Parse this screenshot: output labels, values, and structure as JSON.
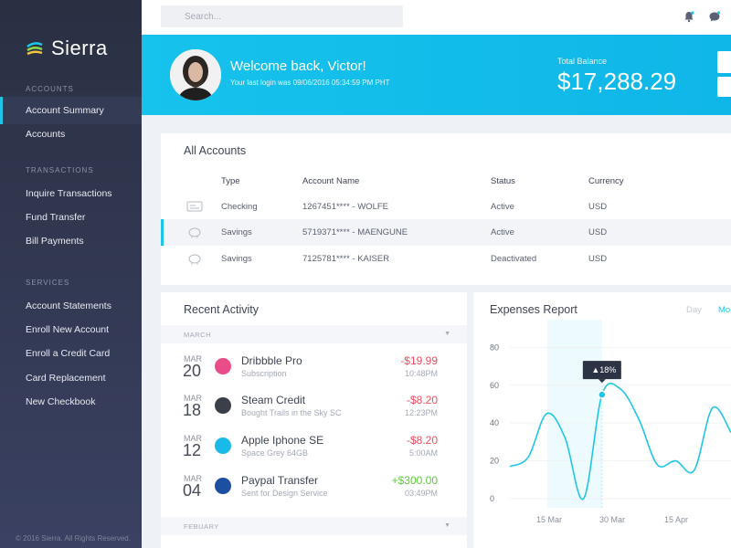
{
  "app": {
    "name": "Sierra"
  },
  "sidebar": {
    "sections": [
      {
        "title": "ACCOUNTS",
        "items": [
          {
            "label": "Account Summary",
            "active": true
          },
          {
            "label": "Accounts"
          }
        ]
      },
      {
        "title": "TRANSACTIONS",
        "items": [
          {
            "label": "Inquire Transactions"
          },
          {
            "label": "Fund Transfer"
          },
          {
            "label": "Bill Payments"
          }
        ]
      },
      {
        "title": "SERVICES",
        "items": [
          {
            "label": "Account Statements"
          },
          {
            "label": "Enroll New Account"
          },
          {
            "label": "Enroll a Credit Card"
          },
          {
            "label": "Card Replacement"
          },
          {
            "label": "New Checkbook"
          }
        ]
      }
    ],
    "copyright": "© 2016 Sierra. All Rights Reserved."
  },
  "search": {
    "placeholder": "Search..."
  },
  "banner": {
    "welcome": "Welcome back, Victor!",
    "last_login": "Your last login was 09/06/2016 05:34:59 PM PHT",
    "balance_label": "Total Balance",
    "balance_value": "$17,288.29"
  },
  "accounts": {
    "title": "All Accounts",
    "columns": [
      "Type",
      "Account Name",
      "Status",
      "Currency"
    ],
    "rows": [
      {
        "type": "Checking",
        "name": "1267451**** - WOLFE",
        "status": "Active",
        "currency": "USD",
        "icon": "check-icon"
      },
      {
        "type": "Savings",
        "name": "5719371**** - MAENGUNE",
        "status": "Active",
        "currency": "USD",
        "icon": "piggy-bank-icon"
      },
      {
        "type": "Savings",
        "name": "7125781**** - KAISER",
        "status": "Deactivated",
        "currency": "USD",
        "icon": "piggy-bank-icon"
      }
    ]
  },
  "activity": {
    "title": "Recent Activity",
    "month": "MARCH",
    "next_month": "FEBUARY",
    "transactions": [
      {
        "month": "MAR",
        "day": "20",
        "name": "Dribbble Pro",
        "sub": "Subscription",
        "amount": "-$19.99",
        "time": "10:48PM",
        "sign": "neg",
        "icon": "dribbble-icon",
        "color": "#ea4c89"
      },
      {
        "month": "MAR",
        "day": "18",
        "name": "Steam Credit",
        "sub": "Bought Trails in the Sky SC",
        "amount": "-$8.20",
        "time": "12:23PM",
        "sign": "neg",
        "icon": "steam-icon",
        "color": "#3a3f49"
      },
      {
        "month": "MAR",
        "day": "12",
        "name": "Apple Iphone SE",
        "sub": "Space Grey 64GB",
        "amount": "-$8.20",
        "time": "5:00AM",
        "sign": "neg",
        "icon": "apple-store-icon",
        "color": "#19b9e9"
      },
      {
        "month": "MAR",
        "day": "04",
        "name": "Paypal Transfer",
        "sub": "Sent for Design Service",
        "amount": "+$300.00",
        "time": "03:49PM",
        "sign": "pos",
        "icon": "paypal-icon",
        "color": "#1b4fa0"
      }
    ]
  },
  "expenses": {
    "title": "Expenses Report",
    "tabs": [
      "Day",
      "Mo"
    ],
    "chart_data": {
      "type": "line",
      "x_ticks": [
        "15 Mar",
        "30 Mar",
        "15 Apr"
      ],
      "y_ticks": [
        0,
        20,
        40,
        60,
        80
      ],
      "ylim": [
        0,
        85
      ],
      "x": [
        0,
        1,
        2,
        3,
        4,
        5,
        6,
        7,
        8,
        9,
        10,
        11,
        12
      ],
      "values": [
        17,
        22,
        45,
        32,
        0,
        55,
        58,
        42,
        18,
        20,
        15,
        48,
        35
      ],
      "highlight": {
        "index": 5,
        "label": "18%"
      },
      "color": "#1ec6e6"
    }
  }
}
